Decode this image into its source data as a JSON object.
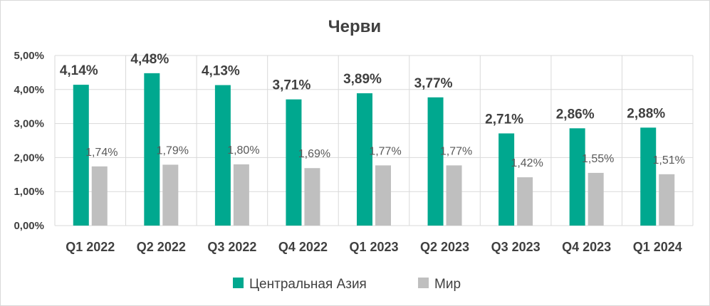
{
  "chart_data": {
    "type": "bar",
    "title": "Черви",
    "categories": [
      "Q1 2022",
      "Q2 2022",
      "Q3 2022",
      "Q4 2022",
      "Q1 2023",
      "Q2 2023",
      "Q3 2023",
      "Q4 2023",
      "Q1 2024"
    ],
    "series": [
      {
        "name": "Центральная Азия",
        "color": "#00a88f",
        "values": [
          4.14,
          4.48,
          4.13,
          3.71,
          3.89,
          3.77,
          2.71,
          2.86,
          2.88
        ],
        "labels": [
          "4,14%",
          "4,48%",
          "4,13%",
          "3,71%",
          "3,89%",
          "3,77%",
          "2,71%",
          "2,86%",
          "2,88%"
        ]
      },
      {
        "name": "Мир",
        "color": "#bfbfbf",
        "values": [
          1.74,
          1.79,
          1.8,
          1.69,
          1.77,
          1.77,
          1.42,
          1.55,
          1.51
        ],
        "labels": [
          "1,74%",
          "1,79%",
          "1,80%",
          "1,69%",
          "1,77%",
          "1,77%",
          "1,42%",
          "1,55%",
          "1,51%"
        ]
      }
    ],
    "y_ticks": [
      "0,00%",
      "1,00%",
      "2,00%",
      "3,00%",
      "4,00%",
      "5,00%"
    ],
    "ylim": [
      0,
      5
    ],
    "grid": true,
    "legend_position": "bottom"
  }
}
